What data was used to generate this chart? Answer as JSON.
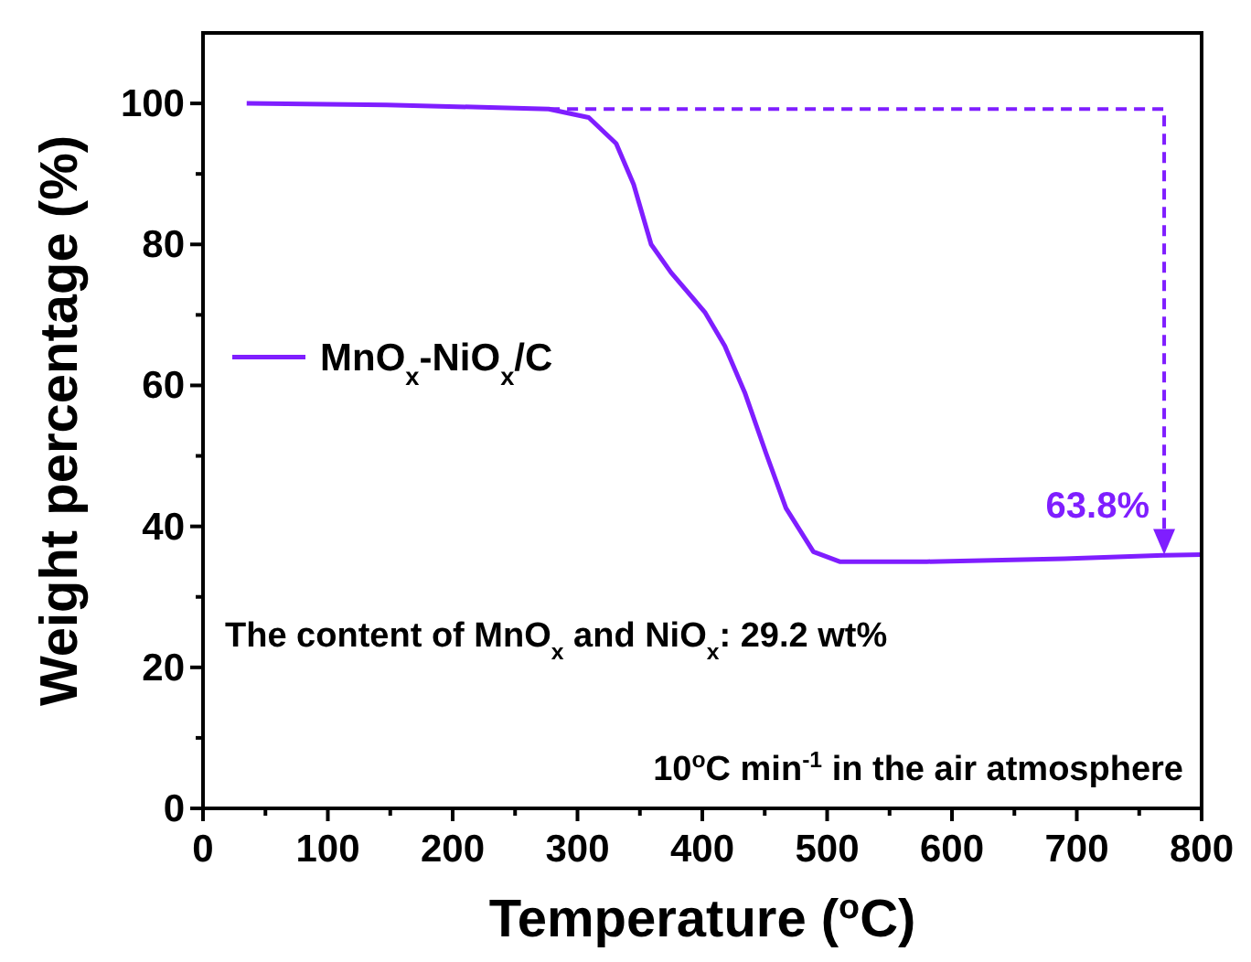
{
  "chart_data": {
    "type": "line",
    "xlabel": "Temperature ($^{o}$C)",
    "ylabel": "Weight percentage (%)",
    "xlim": [
      0,
      800
    ],
    "ylim": [
      0,
      110
    ],
    "xticks": [
      0,
      {
        "value": 50,
        "label": null
      },
      100,
      {
        "value": 150,
        "label": null
      },
      200,
      {
        "value": 250,
        "label": null
      },
      300,
      {
        "value": 350,
        "label": null
      },
      400,
      {
        "value": 450,
        "label": null
      },
      500,
      {
        "value": 550,
        "label": null
      },
      600,
      {
        "value": 650,
        "label": null
      },
      700,
      {
        "value": 750,
        "label": null
      },
      800
    ],
    "yticks": [
      0,
      {
        "value": 10,
        "label": null
      },
      20,
      {
        "value": 30,
        "label": null
      },
      40,
      {
        "value": 50,
        "label": null
      },
      60,
      {
        "value": 70,
        "label": null
      },
      80,
      {
        "value": 90,
        "label": null
      },
      100
    ],
    "legend": "left",
    "grid": false,
    "marker": "none",
    "line_style": "solid",
    "series": [
      {
        "name": "MnO$_{x}$-NiO$_{x}$/C",
        "color": "#7f1eff",
        "x": [
          35,
          147,
          277,
          309,
          331,
          345,
          359,
          375,
          402,
          418,
          434,
          451,
          467,
          489,
          510,
          580,
          690,
          770,
          800
        ],
        "values": [
          100,
          99.8,
          99.2,
          98,
          94.3,
          88.5,
          80,
          76,
          70.4,
          65.6,
          59,
          50.4,
          42.6,
          36.4,
          35,
          35,
          35.4,
          35.9,
          36
        ]
      }
    ],
    "annotations": [
      {
        "text": "63.8%",
        "x": 770,
        "y": 36
      },
      "The content of MnO$_{x}$ and NiO$_{x}$: 29.2 wt%",
      "10$^{o}$C min$^{-1}$ in the air atmosphere"
    ]
  }
}
